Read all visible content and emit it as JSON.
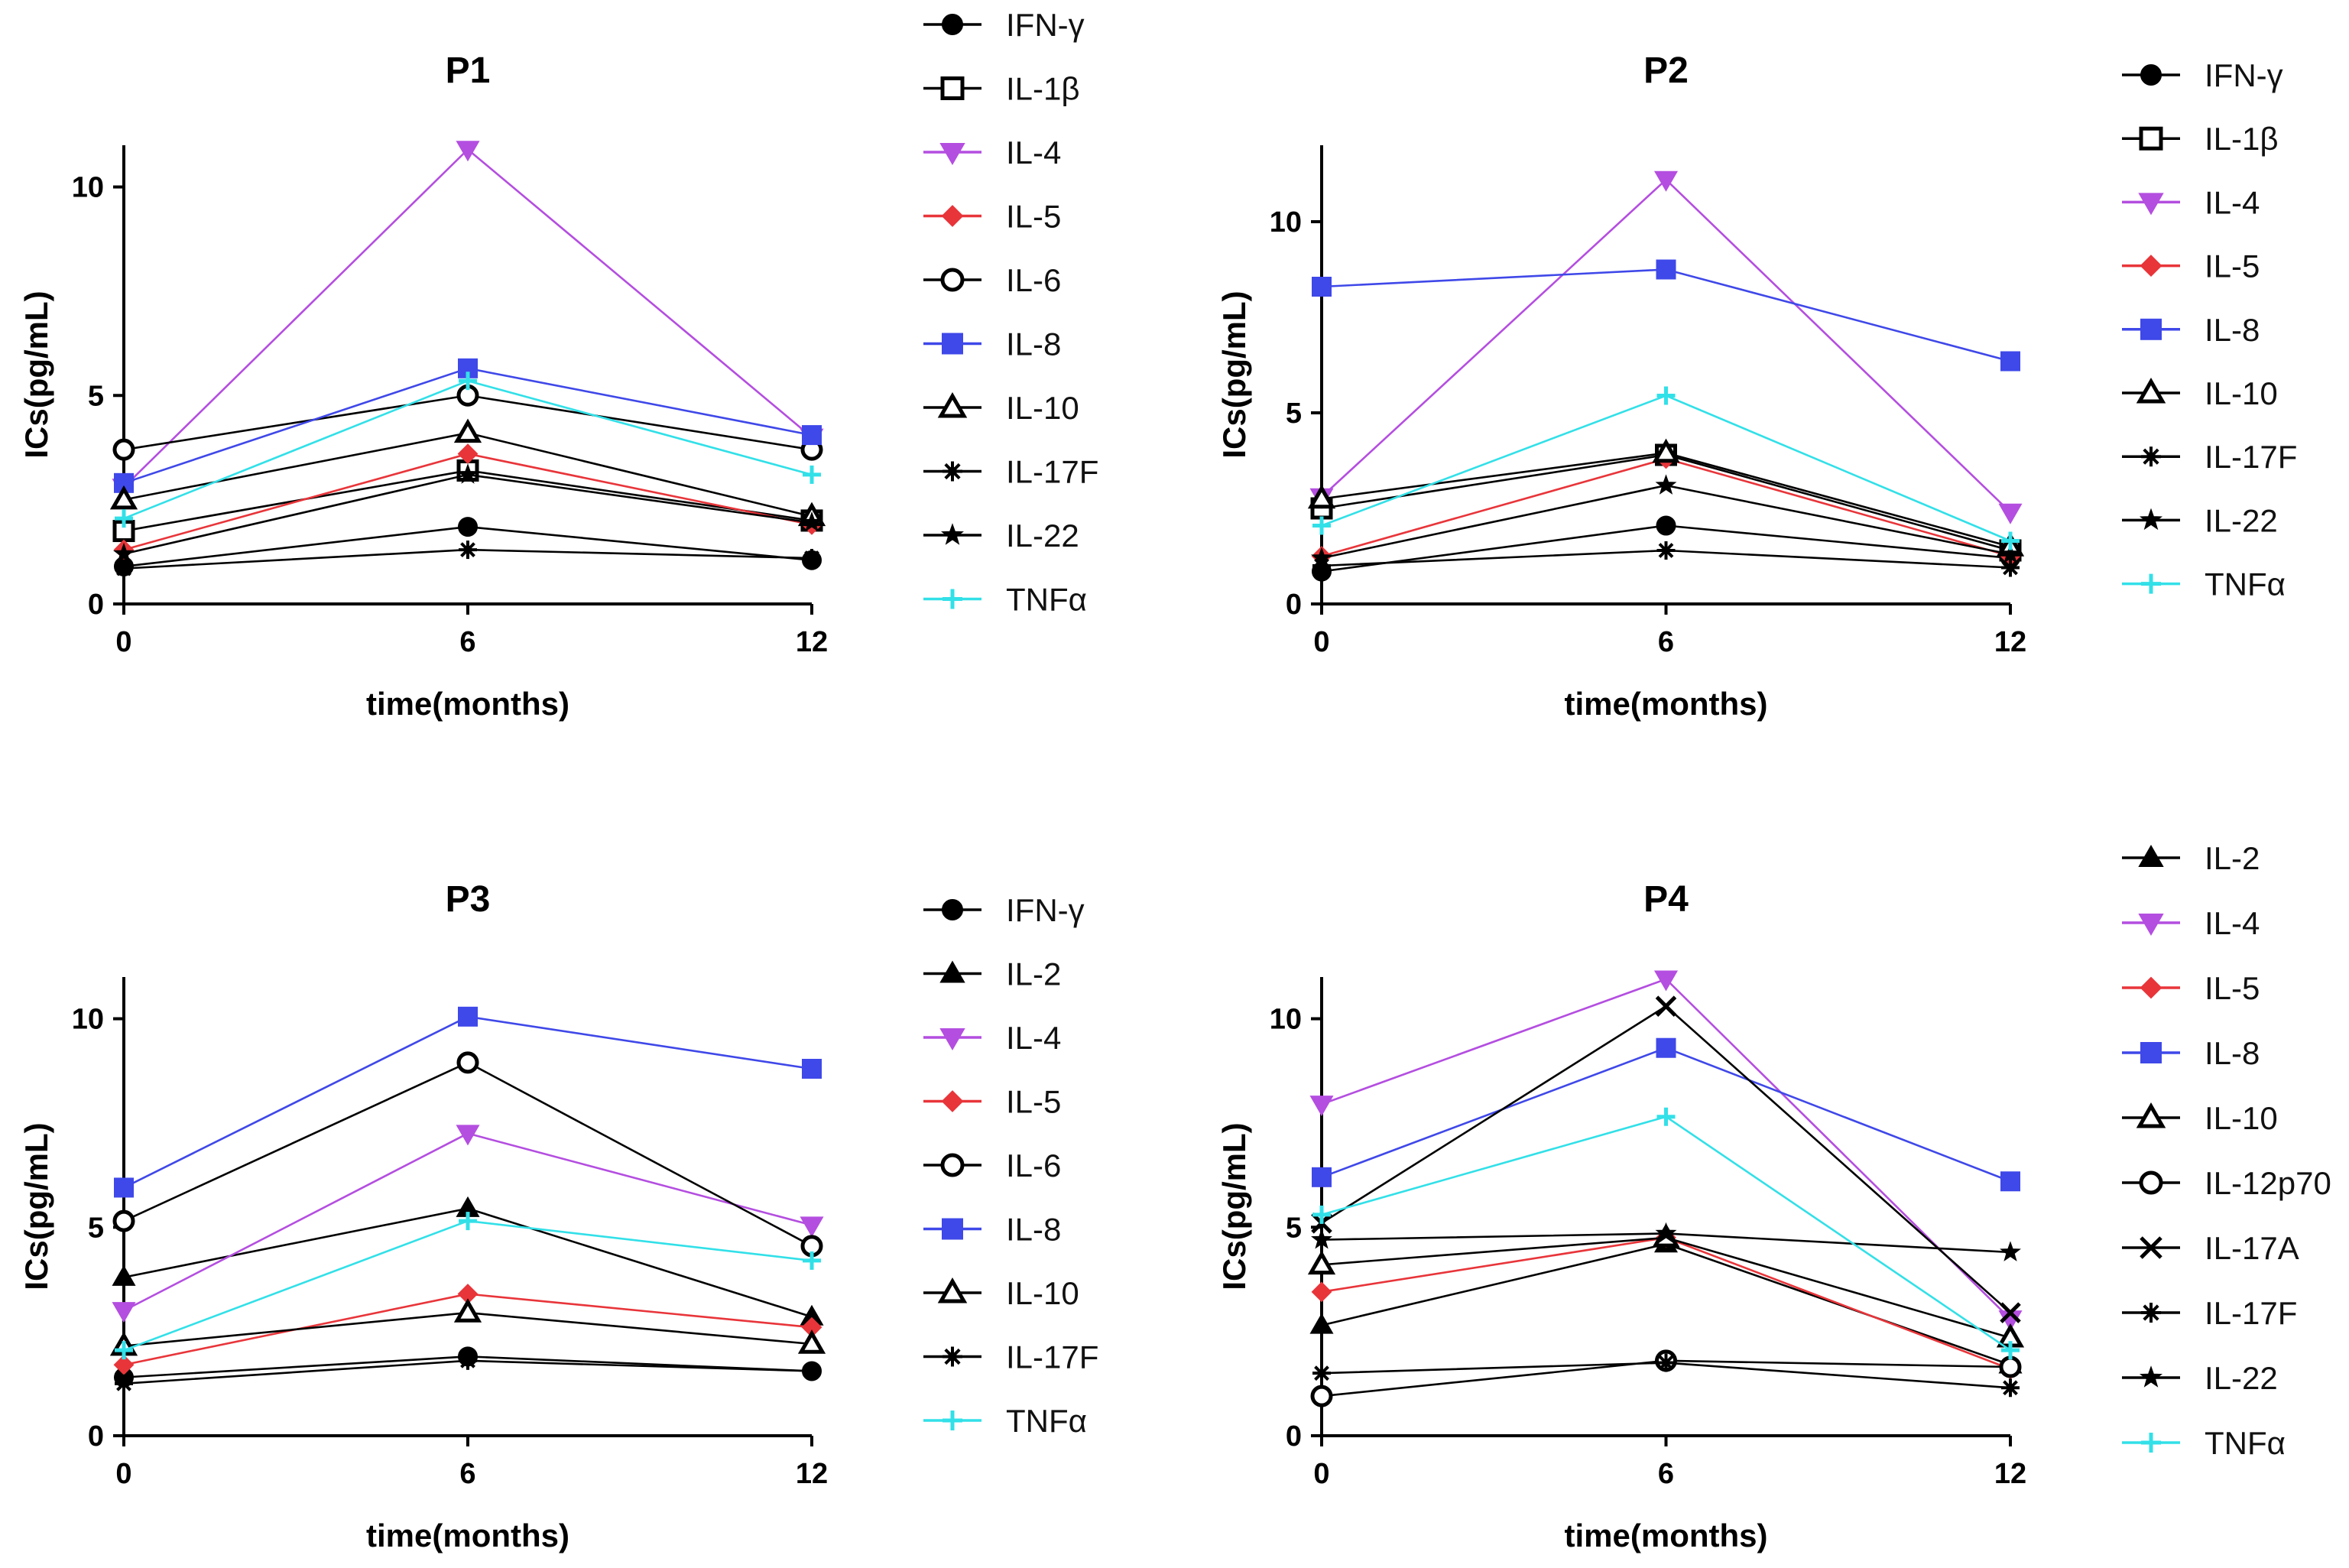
{
  "chart_data": [
    {
      "type": "line",
      "title": "P1",
      "xlabel": "time(months)",
      "ylabel": "ICs(pg/mL)",
      "x": [
        0,
        6,
        12
      ],
      "x_ticks": [
        "0",
        "6",
        "12"
      ],
      "y_ticks": [
        "0",
        "5",
        "10"
      ],
      "ylim": [
        0,
        11
      ],
      "legend_position": "right",
      "series": [
        {
          "name": "IFN-γ",
          "marker": "circle",
          "color": "#000000",
          "values": [
            0.9,
            1.85,
            1.05
          ]
        },
        {
          "name": "IL-1β",
          "marker": "square-open",
          "color": "#000000",
          "values": [
            1.75,
            3.2,
            2.0
          ]
        },
        {
          "name": "IL-4",
          "marker": "triangle-down",
          "color": "#b44ee0",
          "values": [
            2.8,
            10.9,
            4.0
          ]
        },
        {
          "name": "IL-5",
          "marker": "diamond",
          "color": "#e8353a",
          "values": [
            1.3,
            3.6,
            1.9
          ]
        },
        {
          "name": "IL-6",
          "marker": "circle-open",
          "color": "#000000",
          "values": [
            3.7,
            5.0,
            3.7
          ]
        },
        {
          "name": "IL-8",
          "marker": "square",
          "color": "#3f48e8",
          "values": [
            2.9,
            5.65,
            4.05
          ]
        },
        {
          "name": "IL-10",
          "marker": "triangle-open",
          "color": "#000000",
          "values": [
            2.5,
            4.1,
            2.1
          ]
        },
        {
          "name": "IL-17F",
          "marker": "asterisk",
          "color": "#000000",
          "values": [
            0.85,
            1.3,
            1.1
          ]
        },
        {
          "name": "IL-22",
          "marker": "star",
          "color": "#000000",
          "values": [
            1.2,
            3.1,
            1.95
          ]
        },
        {
          "name": "TNFα",
          "marker": "plus",
          "color": "#32e0e8",
          "values": [
            2.05,
            5.35,
            3.1
          ]
        }
      ]
    },
    {
      "type": "line",
      "title": "P2",
      "xlabel": "time(months)",
      "ylabel": "ICs(pg/mL)",
      "x": [
        0,
        6,
        12
      ],
      "x_ticks": [
        "0",
        "6",
        "12"
      ],
      "y_ticks": [
        "0",
        "5",
        "10"
      ],
      "ylim": [
        0,
        12
      ],
      "legend_position": "right",
      "series": [
        {
          "name": "IFN-γ",
          "marker": "circle",
          "color": "#000000",
          "values": [
            0.85,
            2.05,
            1.2
          ]
        },
        {
          "name": "IL-1β",
          "marker": "square-open",
          "color": "#000000",
          "values": [
            2.5,
            3.9,
            1.4
          ]
        },
        {
          "name": "IL-4",
          "marker": "triangle-down",
          "color": "#b44ee0",
          "values": [
            2.8,
            11.1,
            2.4
          ]
        },
        {
          "name": "IL-5",
          "marker": "diamond",
          "color": "#e8353a",
          "values": [
            1.25,
            3.8,
            1.25
          ]
        },
        {
          "name": "IL-8",
          "marker": "square",
          "color": "#3f48e8",
          "values": [
            8.3,
            8.75,
            6.35
          ]
        },
        {
          "name": "IL-10",
          "marker": "triangle-open",
          "color": "#000000",
          "values": [
            2.75,
            3.95,
            1.5
          ]
        },
        {
          "name": "IL-17F",
          "marker": "asterisk",
          "color": "#000000",
          "values": [
            1.0,
            1.4,
            0.95
          ]
        },
        {
          "name": "IL-22",
          "marker": "star",
          "color": "#000000",
          "values": [
            1.2,
            3.1,
            1.3
          ]
        },
        {
          "name": "TNFα",
          "marker": "plus",
          "color": "#32e0e8",
          "values": [
            2.05,
            5.45,
            1.65
          ]
        }
      ]
    },
    {
      "type": "line",
      "title": "P3",
      "xlabel": "time(months)",
      "ylabel": "ICs(pg/mL)",
      "x": [
        0,
        6,
        12
      ],
      "x_ticks": [
        "0",
        "6",
        "12"
      ],
      "y_ticks": [
        "0",
        "5",
        "10"
      ],
      "ylim": [
        0,
        11
      ],
      "legend_position": "right",
      "series": [
        {
          "name": "IFN-γ",
          "marker": "circle",
          "color": "#000000",
          "values": [
            1.4,
            1.9,
            1.55
          ]
        },
        {
          "name": "IL-2",
          "marker": "triangle",
          "color": "#000000",
          "values": [
            3.8,
            5.45,
            2.85
          ]
        },
        {
          "name": "IL-4",
          "marker": "triangle-down",
          "color": "#b44ee0",
          "values": [
            3.0,
            7.25,
            5.05
          ]
        },
        {
          "name": "IL-5",
          "marker": "diamond",
          "color": "#e8353a",
          "values": [
            1.7,
            3.4,
            2.6
          ]
        },
        {
          "name": "IL-6",
          "marker": "circle-open",
          "color": "#000000",
          "values": [
            5.15,
            8.95,
            4.55
          ]
        },
        {
          "name": "IL-8",
          "marker": "square",
          "color": "#3f48e8",
          "values": [
            5.95,
            10.05,
            8.8
          ]
        },
        {
          "name": "IL-10",
          "marker": "triangle-open",
          "color": "#000000",
          "values": [
            2.15,
            2.95,
            2.2
          ]
        },
        {
          "name": "IL-17F",
          "marker": "asterisk",
          "color": "#000000",
          "values": [
            1.25,
            1.8,
            1.55
          ]
        },
        {
          "name": "TNFα",
          "marker": "plus",
          "color": "#32e0e8",
          "values": [
            2.05,
            5.15,
            4.2
          ]
        }
      ]
    },
    {
      "type": "line",
      "title": "P4",
      "xlabel": "time(months)",
      "ylabel": "ICs(pg/mL)",
      "x": [
        0,
        6,
        12
      ],
      "x_ticks": [
        "0",
        "6",
        "12"
      ],
      "y_ticks": [
        "0",
        "5",
        "10"
      ],
      "ylim": [
        0,
        11
      ],
      "legend_position": "right",
      "series": [
        {
          "name": "IL-2",
          "marker": "triangle",
          "color": "#000000",
          "values": [
            2.65,
            4.6,
            1.7
          ]
        },
        {
          "name": "IL-4",
          "marker": "triangle-down",
          "color": "#b44ee0",
          "values": [
            7.95,
            10.95,
            2.8
          ]
        },
        {
          "name": "IL-5",
          "marker": "diamond",
          "color": "#e8353a",
          "values": [
            3.45,
            4.75,
            1.6
          ]
        },
        {
          "name": "IL-8",
          "marker": "square",
          "color": "#3f48e8",
          "values": [
            6.2,
            9.3,
            6.1
          ]
        },
        {
          "name": "IL-10",
          "marker": "triangle-open",
          "color": "#000000",
          "values": [
            4.1,
            4.75,
            2.35
          ]
        },
        {
          "name": "IL-12p70",
          "marker": "circle-open",
          "color": "#000000",
          "values": [
            0.95,
            1.8,
            1.65
          ]
        },
        {
          "name": "IL-17A",
          "marker": "x",
          "color": "#000000",
          "values": [
            5.1,
            10.3,
            2.95
          ]
        },
        {
          "name": "IL-17F",
          "marker": "asterisk",
          "color": "#000000",
          "values": [
            1.5,
            1.75,
            1.15
          ]
        },
        {
          "name": "IL-22",
          "marker": "star",
          "color": "#000000",
          "values": [
            4.7,
            4.85,
            4.4
          ]
        },
        {
          "name": "TNFα",
          "marker": "plus",
          "color": "#32e0e8",
          "values": [
            5.3,
            7.65,
            2.05
          ]
        }
      ]
    }
  ]
}
